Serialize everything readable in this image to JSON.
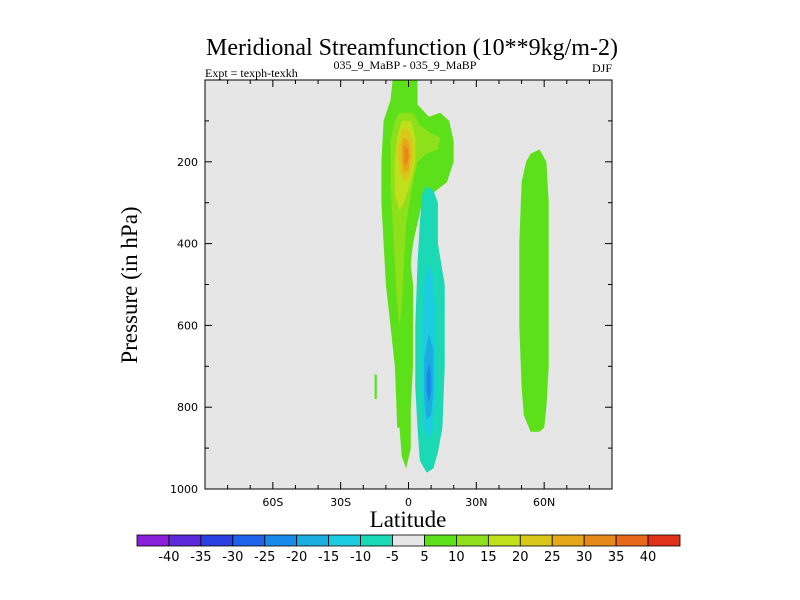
{
  "chart_data": {
    "type": "heatmap",
    "title": "Meridional Streamfunction (10**9kg/m-2)",
    "left_subtitle": "Expt = texph-texkh",
    "center_subtitle": "035_9_MaBP - 035_9_MaBP",
    "right_subtitle": "DJF",
    "xlabel": "Latitude",
    "ylabel": "Pressure (in hPa)",
    "xlim": [
      -90,
      90
    ],
    "ylim": [
      0,
      1000
    ],
    "y_reversed": true,
    "x_ticks": [
      {
        "value": -60,
        "label": "60S"
      },
      {
        "value": -30,
        "label": "30S"
      },
      {
        "value": 0,
        "label": "0"
      },
      {
        "value": 30,
        "label": "30N"
      },
      {
        "value": 60,
        "label": "60N"
      }
    ],
    "y_ticks": [
      {
        "value": 200,
        "label": "200"
      },
      {
        "value": 400,
        "label": "400"
      },
      {
        "value": 600,
        "label": "600"
      },
      {
        "value": 800,
        "label": "800"
      },
      {
        "value": 1000,
        "label": "1000"
      }
    ],
    "background_color": "#e6e6e6",
    "colorbar": {
      "labels": [
        "-40",
        "-35",
        "-30",
        "-25",
        "-20",
        "-15",
        "-10",
        "-5",
        "5",
        "10",
        "15",
        "20",
        "25",
        "30",
        "35",
        "40"
      ],
      "colors": [
        "#8a1fd9",
        "#5c2ad9",
        "#2a3fe0",
        "#1d62e8",
        "#1a8ae8",
        "#1aaee0",
        "#1ccce0",
        "#1ad9b4",
        "#e6e6e6",
        "#5ce01a",
        "#8ee01a",
        "#bfe01a",
        "#d9c81a",
        "#e6a81a",
        "#e6881a",
        "#e6681a",
        "#e0321a"
      ]
    },
    "regions": [
      {
        "name": "positive-5-10-main-column",
        "level": "5 to 10",
        "color": "#5ce01a",
        "points": [
          [
            -5,
            0
          ],
          [
            4,
            0
          ],
          [
            4,
            6
          ],
          [
            9,
            9
          ],
          [
            14,
            8
          ],
          [
            18,
            10
          ],
          [
            20,
            15
          ],
          [
            20,
            20
          ],
          [
            17,
            25
          ],
          [
            10,
            28
          ],
          [
            6,
            30
          ],
          [
            4,
            35
          ],
          [
            2,
            40
          ],
          [
            1,
            45
          ],
          [
            2,
            50
          ],
          [
            2,
            60
          ],
          [
            2,
            70
          ],
          [
            1,
            80
          ],
          [
            1,
            90
          ],
          [
            -1,
            95
          ],
          [
            -3,
            92
          ],
          [
            -4,
            85
          ],
          [
            -5,
            85
          ],
          [
            -6,
            70
          ],
          [
            -8,
            60
          ],
          [
            -10,
            50
          ],
          [
            -11,
            40
          ],
          [
            -12,
            30
          ],
          [
            -12,
            20
          ],
          [
            -11,
            10
          ],
          [
            -8,
            5
          ],
          [
            -7,
            0
          ]
        ]
      },
      {
        "name": "positive-5-10-southern-spot",
        "level": "5 to 10",
        "color": "#5ce01a",
        "points": [
          [
            -15,
            72
          ],
          [
            -14,
            72
          ],
          [
            -14,
            78
          ],
          [
            -15,
            78
          ]
        ]
      },
      {
        "name": "positive-5-10-northern-cell",
        "level": "5 to 10",
        "color": "#5ce01a",
        "points": [
          [
            54,
            18
          ],
          [
            58,
            17
          ],
          [
            61,
            20
          ],
          [
            62,
            30
          ],
          [
            62,
            50
          ],
          [
            62,
            70
          ],
          [
            61,
            80
          ],
          [
            60,
            85
          ],
          [
            58,
            86
          ],
          [
            54,
            86
          ],
          [
            51,
            82
          ],
          [
            50,
            75
          ],
          [
            49,
            60
          ],
          [
            49,
            40
          ],
          [
            50,
            25
          ],
          [
            52,
            20
          ]
        ]
      },
      {
        "name": "positive-10-15-jet-band",
        "level": "10 to 15",
        "color": "#8ee01a",
        "points": [
          [
            -4,
            8
          ],
          [
            2,
            8
          ],
          [
            5,
            11
          ],
          [
            10,
            13
          ],
          [
            14,
            14
          ],
          [
            13,
            17
          ],
          [
            8,
            18
          ],
          [
            4,
            20
          ],
          [
            2,
            25
          ],
          [
            -1,
            35
          ],
          [
            -2,
            45
          ],
          [
            -3,
            55
          ],
          [
            -4,
            60
          ],
          [
            -5,
            55
          ],
          [
            -6,
            45
          ],
          [
            -7,
            35
          ],
          [
            -8,
            25
          ],
          [
            -8,
            15
          ],
          [
            -6,
            10
          ]
        ]
      },
      {
        "name": "positive-15-20-upper-core",
        "level": "15 to 20",
        "color": "#bfe01a",
        "points": [
          [
            -3,
            10
          ],
          [
            1,
            10
          ],
          [
            3,
            14
          ],
          [
            3,
            20
          ],
          [
            1,
            25
          ],
          [
            -2,
            30
          ],
          [
            -4,
            32
          ],
          [
            -6,
            28
          ],
          [
            -6,
            20
          ],
          [
            -5,
            14
          ]
        ]
      },
      {
        "name": "positive-20-25-upper-core",
        "level": "20 to 25",
        "color": "#d9c81a",
        "points": [
          [
            -3,
            12
          ],
          [
            0,
            12
          ],
          [
            2,
            15
          ],
          [
            2,
            20
          ],
          [
            0,
            24
          ],
          [
            -2,
            25
          ],
          [
            -4,
            22
          ],
          [
            -5,
            17
          ]
        ]
      },
      {
        "name": "positive-25-30-upper-core",
        "level": "25 to 30",
        "color": "#e6a81a",
        "points": [
          [
            -2,
            14
          ],
          [
            0,
            15
          ],
          [
            1,
            18
          ],
          [
            0,
            22
          ],
          [
            -2,
            23
          ],
          [
            -3,
            20
          ],
          [
            -3,
            16
          ]
        ]
      },
      {
        "name": "positive-30-35-upper-core",
        "level": "30 to 35",
        "color": "#e6881a",
        "points": [
          [
            -2,
            16
          ],
          [
            0,
            17
          ],
          [
            0,
            19
          ],
          [
            -1,
            21
          ],
          [
            -2,
            20
          ]
        ]
      },
      {
        "name": "negative-5-10-cell",
        "level": "-10 to -5",
        "color": "#1ad9b4",
        "points": [
          [
            8,
            26
          ],
          [
            11,
            27
          ],
          [
            13,
            30
          ],
          [
            13,
            40
          ],
          [
            16,
            50
          ],
          [
            16,
            70
          ],
          [
            15,
            85
          ],
          [
            13,
            91
          ],
          [
            11,
            95
          ],
          [
            8,
            96
          ],
          [
            5,
            93
          ],
          [
            4,
            85
          ],
          [
            3,
            75
          ],
          [
            3,
            60
          ],
          [
            4,
            45
          ],
          [
            5,
            35
          ],
          [
            6,
            28
          ]
        ]
      },
      {
        "name": "negative-10-15-cell",
        "level": "-15 to -10",
        "color": "#1ccce0",
        "points": [
          [
            9,
            45
          ],
          [
            11,
            48
          ],
          [
            12,
            60
          ],
          [
            12,
            75
          ],
          [
            11,
            85
          ],
          [
            9,
            88
          ],
          [
            7,
            85
          ],
          [
            6,
            75
          ],
          [
            6,
            60
          ],
          [
            7,
            50
          ]
        ]
      },
      {
        "name": "negative-15-20-cell",
        "level": "-20 to -15",
        "color": "#1aaee0",
        "points": [
          [
            9,
            62
          ],
          [
            11,
            66
          ],
          [
            11,
            76
          ],
          [
            10,
            82
          ],
          [
            8,
            83
          ],
          [
            7,
            78
          ],
          [
            7,
            68
          ]
        ]
      },
      {
        "name": "negative-20-25-core",
        "level": "-25 to -20",
        "color": "#1a8ae8",
        "points": [
          [
            9,
            69
          ],
          [
            10,
            72
          ],
          [
            10,
            76
          ],
          [
            9,
            79
          ],
          [
            8,
            76
          ],
          [
            8,
            72
          ]
        ]
      }
    ]
  }
}
